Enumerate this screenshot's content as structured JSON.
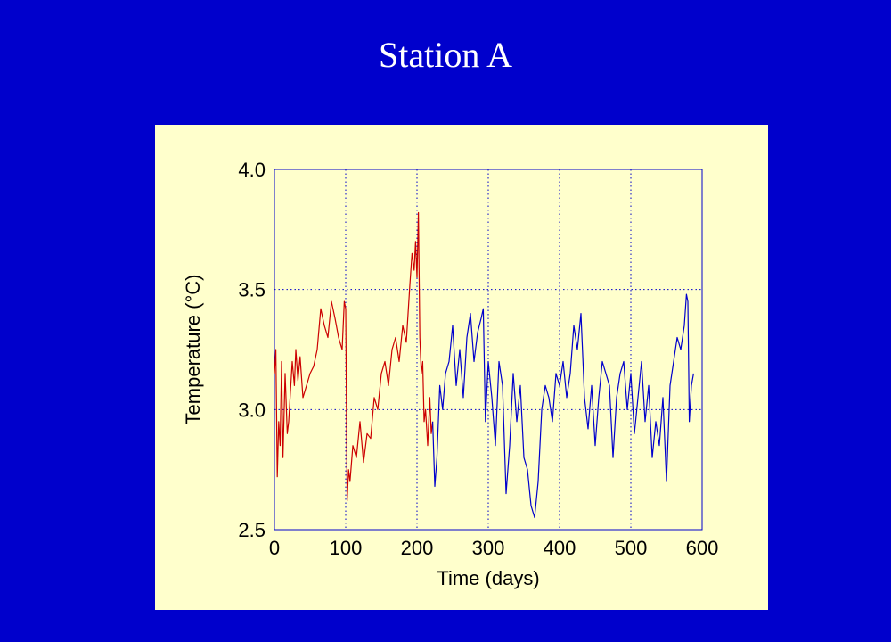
{
  "slide": {
    "title": "Station A"
  },
  "colors": {
    "background": "#0000cc",
    "panel": "#ffffcc",
    "series_1": "#cc0000",
    "series_2": "#0000cc"
  },
  "chart_data": {
    "type": "line",
    "xlabel": "Time (days)",
    "ylabel": "Temperature (°C)",
    "xlim": [
      0,
      600
    ],
    "ylim": [
      2.5,
      4.0
    ],
    "xticks": [
      0,
      100,
      200,
      300,
      400,
      500,
      600
    ],
    "yticks": [
      2.5,
      3.0,
      3.5,
      4.0
    ],
    "xtick_labels": [
      "0",
      "100",
      "200",
      "300",
      "400",
      "500",
      "600"
    ],
    "ytick_labels": [
      "2.5",
      "3.0",
      "3.5",
      "4.0"
    ],
    "grid": true,
    "series": [
      {
        "color": "#cc0000",
        "x": [
          0,
          2,
          4,
          6,
          8,
          10,
          12,
          15,
          18,
          20,
          22,
          25,
          28,
          30,
          33,
          36,
          40,
          45,
          50,
          55,
          60,
          65,
          70,
          75,
          80,
          85,
          90,
          95,
          98,
          100,
          102,
          104,
          106,
          110,
          115,
          120,
          125,
          130,
          135,
          140,
          145,
          150,
          155,
          160,
          165,
          170,
          175,
          180,
          185,
          190,
          193,
          196,
          198,
          200,
          202,
          204,
          206,
          208,
          210,
          212,
          215,
          218,
          220,
          222
        ],
        "y": [
          3.15,
          3.25,
          2.72,
          2.95,
          2.85,
          3.2,
          2.8,
          3.15,
          2.9,
          2.95,
          3.05,
          3.2,
          3.1,
          3.25,
          3.12,
          3.22,
          3.05,
          3.1,
          3.15,
          3.18,
          3.25,
          3.42,
          3.35,
          3.3,
          3.45,
          3.38,
          3.3,
          3.25,
          3.45,
          3.42,
          2.62,
          2.75,
          2.7,
          2.85,
          2.8,
          2.95,
          2.78,
          2.9,
          2.88,
          3.05,
          3.0,
          3.15,
          3.2,
          3.1,
          3.25,
          3.3,
          3.2,
          3.35,
          3.28,
          3.52,
          3.65,
          3.58,
          3.7,
          3.55,
          3.82,
          3.3,
          3.15,
          3.2,
          2.95,
          3.0,
          2.85,
          3.05,
          2.9,
          2.95
        ]
      },
      {
        "color": "#0000cc",
        "x": [
          222,
          225,
          228,
          232,
          236,
          240,
          245,
          250,
          255,
          260,
          265,
          270,
          275,
          280,
          285,
          290,
          293,
          296,
          300,
          305,
          310,
          315,
          320,
          325,
          330,
          335,
          340,
          345,
          350,
          355,
          360,
          365,
          370,
          375,
          380,
          385,
          390,
          395,
          400,
          405,
          410,
          415,
          420,
          425,
          430,
          435,
          440,
          445,
          450,
          455,
          460,
          465,
          470,
          475,
          480,
          485,
          490,
          495,
          500,
          505,
          510,
          515,
          520,
          525,
          530,
          535,
          540,
          545,
          550,
          555,
          560,
          565,
          570,
          575,
          578,
          580,
          582,
          585,
          588
        ],
        "y": [
          2.95,
          2.68,
          2.8,
          3.1,
          3.0,
          3.15,
          3.2,
          3.35,
          3.1,
          3.25,
          3.05,
          3.3,
          3.4,
          3.2,
          3.32,
          3.38,
          3.42,
          2.95,
          3.2,
          3.05,
          2.85,
          3.2,
          3.1,
          2.65,
          2.85,
          3.15,
          2.95,
          3.1,
          2.8,
          2.75,
          2.6,
          2.55,
          2.7,
          3.0,
          3.1,
          3.05,
          2.95,
          3.15,
          3.1,
          3.2,
          3.05,
          3.15,
          3.35,
          3.25,
          3.4,
          3.05,
          2.92,
          3.1,
          2.85,
          3.05,
          3.2,
          3.15,
          3.1,
          2.8,
          3.05,
          3.15,
          3.2,
          3.0,
          3.15,
          2.9,
          3.05,
          3.2,
          2.95,
          3.1,
          2.8,
          2.95,
          2.85,
          3.05,
          2.7,
          3.1,
          3.2,
          3.3,
          3.25,
          3.35,
          3.48,
          3.45,
          2.95,
          3.1,
          3.15
        ]
      }
    ]
  }
}
